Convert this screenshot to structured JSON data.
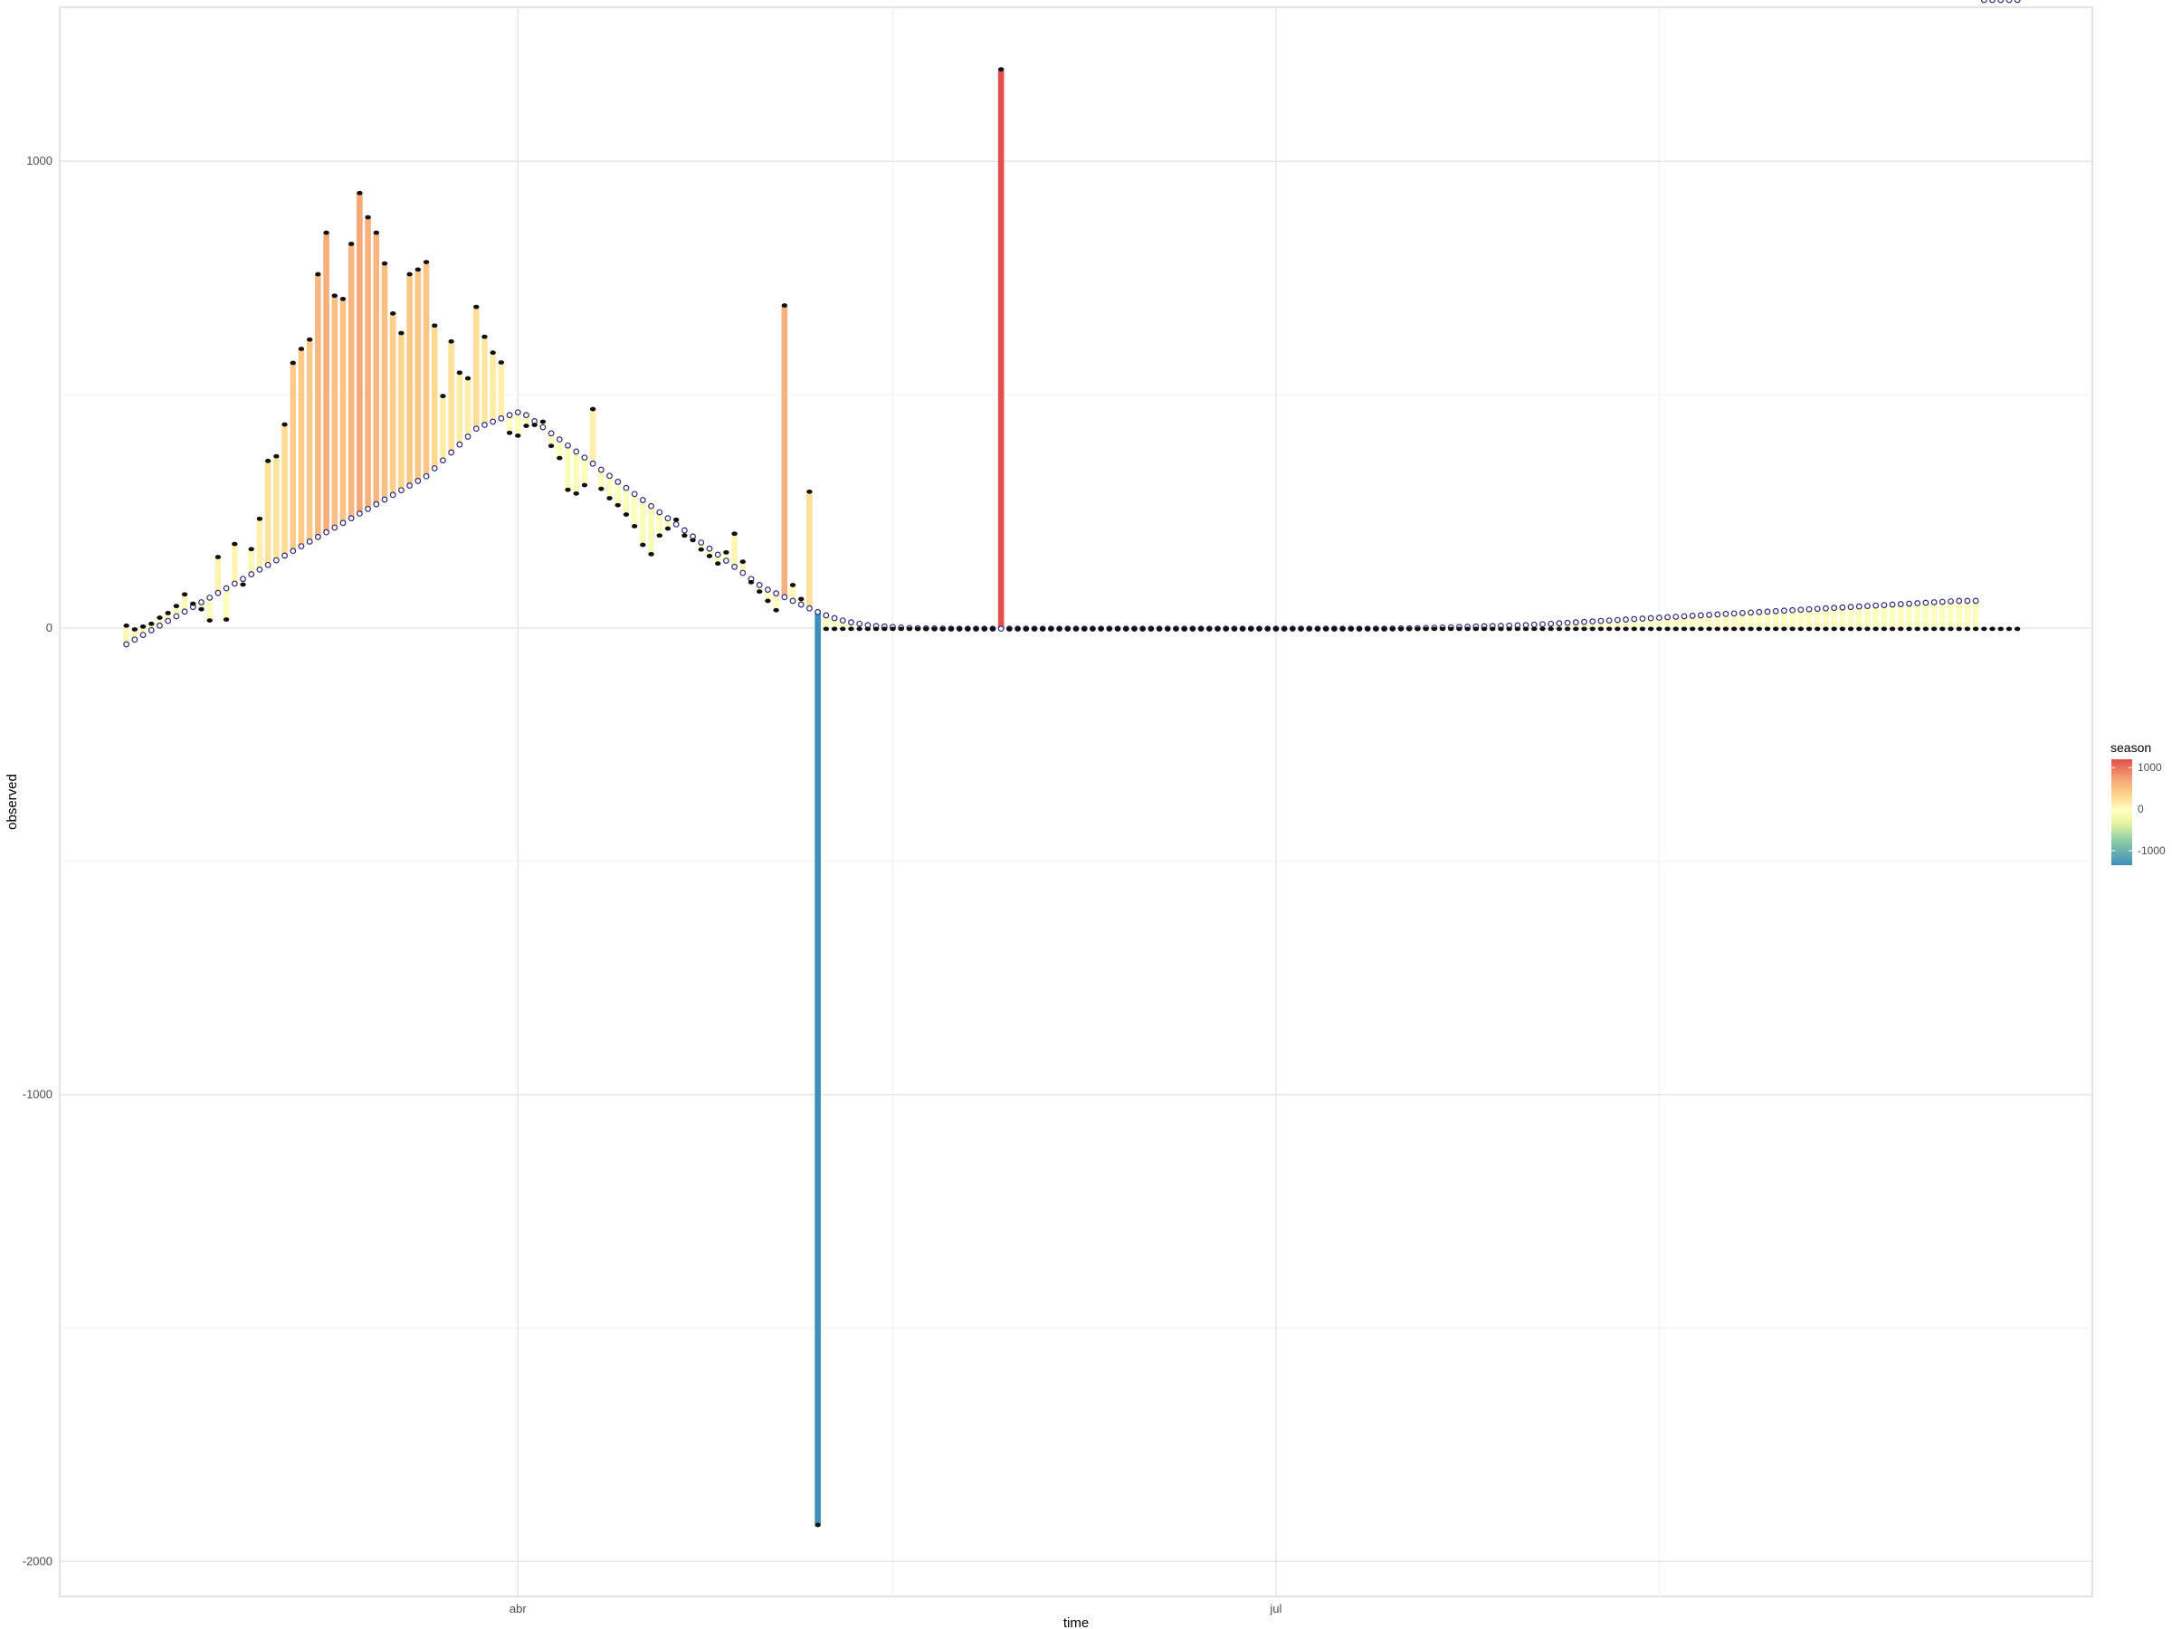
{
  "chart_data": {
    "type": "bar",
    "xlabel": "time",
    "ylabel": "observed",
    "ylim": [
      -2075,
      1330
    ],
    "y_ticks": [
      1000,
      0,
      -1000,
      -2000
    ],
    "y_tick_labels": [
      "1000",
      "0",
      "-1000",
      "-2000"
    ],
    "x_start": "2020-02-06",
    "x_end": "2020-10-07",
    "x_ticks": [
      {
        "date": "2020-04-01",
        "label": "abr"
      },
      {
        "date": "2020-07-01",
        "label": "jul"
      }
    ],
    "x_minor_ticks": [
      "2020-05-16",
      "2020-08-16"
    ],
    "grid": true,
    "legend": {
      "title": "season",
      "position": "right",
      "labels": [
        "1000",
        "0",
        "-1000"
      ],
      "values": [
        1000,
        0,
        -1000
      ],
      "min": -1350,
      "max": 1200
    },
    "colors": {
      "trend_marker": "#2d2a78",
      "observed_marker": "#111111",
      "gradient": [
        "#3f8fbc",
        "#88c9a5",
        "#e8f5a0",
        "#ffffbf",
        "#fed990",
        "#f4a274",
        "#e34e4a"
      ]
    },
    "dates": [
      "2020-02-14",
      "2020-02-15",
      "2020-02-16",
      "2020-02-17",
      "2020-02-18",
      "2020-02-19",
      "2020-02-20",
      "2020-02-21",
      "2020-02-22",
      "2020-02-23",
      "2020-02-24",
      "2020-02-25",
      "2020-02-26",
      "2020-02-27",
      "2020-02-28",
      "2020-02-29",
      "2020-03-01",
      "2020-03-02",
      "2020-03-03",
      "2020-03-04",
      "2020-03-05",
      "2020-03-06",
      "2020-03-07",
      "2020-03-08",
      "2020-03-09",
      "2020-03-10",
      "2020-03-11",
      "2020-03-12",
      "2020-03-13",
      "2020-03-14",
      "2020-03-15",
      "2020-03-16",
      "2020-03-17",
      "2020-03-18",
      "2020-03-19",
      "2020-03-20",
      "2020-03-21",
      "2020-03-22",
      "2020-03-23",
      "2020-03-24",
      "2020-03-25",
      "2020-03-26",
      "2020-03-27",
      "2020-03-28",
      "2020-03-29",
      "2020-03-30",
      "2020-03-31",
      "2020-04-01",
      "2020-04-02",
      "2020-04-03",
      "2020-04-04",
      "2020-04-05",
      "2020-04-06",
      "2020-04-07",
      "2020-04-08",
      "2020-04-09",
      "2020-04-10",
      "2020-04-11",
      "2020-04-12",
      "2020-04-13",
      "2020-04-14",
      "2020-04-15",
      "2020-04-16",
      "2020-04-17",
      "2020-04-18",
      "2020-04-19",
      "2020-04-20",
      "2020-04-21",
      "2020-04-22",
      "2020-04-23",
      "2020-04-24",
      "2020-04-25",
      "2020-04-26",
      "2020-04-27",
      "2020-04-28",
      "2020-04-29",
      "2020-04-30",
      "2020-05-01",
      "2020-05-02",
      "2020-05-03",
      "2020-05-04",
      "2020-05-05",
      "2020-05-06",
      "2020-05-07",
      "2020-05-08",
      "2020-05-09",
      "2020-05-10",
      "2020-05-11",
      "2020-05-12",
      "2020-05-13",
      "2020-05-14",
      "2020-05-15",
      "2020-05-16",
      "2020-05-17",
      "2020-05-18",
      "2020-05-19",
      "2020-05-20",
      "2020-05-21",
      "2020-05-22",
      "2020-05-23",
      "2020-05-24",
      "2020-05-25",
      "2020-05-26",
      "2020-05-27",
      "2020-05-28",
      "2020-05-29",
      "2020-05-30",
      "2020-05-31",
      "2020-06-01",
      "2020-06-02",
      "2020-06-03",
      "2020-06-04",
      "2020-06-05",
      "2020-06-06",
      "2020-06-07",
      "2020-06-08",
      "2020-06-09",
      "2020-06-10",
      "2020-06-11",
      "2020-06-12",
      "2020-06-13",
      "2020-06-14",
      "2020-06-15",
      "2020-06-16",
      "2020-06-17",
      "2020-06-18",
      "2020-06-19",
      "2020-06-20",
      "2020-06-21",
      "2020-06-22",
      "2020-06-23",
      "2020-06-24",
      "2020-06-25",
      "2020-06-26",
      "2020-06-27",
      "2020-06-28",
      "2020-06-29",
      "2020-06-30",
      "2020-07-01",
      "2020-07-02",
      "2020-07-03",
      "2020-07-04",
      "2020-07-05",
      "2020-07-06",
      "2020-07-07",
      "2020-07-08",
      "2020-07-09",
      "2020-07-10",
      "2020-07-11",
      "2020-07-12",
      "2020-07-13",
      "2020-07-14",
      "2020-07-15",
      "2020-07-16",
      "2020-07-17",
      "2020-07-18",
      "2020-07-19",
      "2020-07-20",
      "2020-07-21",
      "2020-07-22",
      "2020-07-23",
      "2020-07-24",
      "2020-07-25",
      "2020-07-26",
      "2020-07-27",
      "2020-07-28",
      "2020-07-29",
      "2020-07-30",
      "2020-07-31",
      "2020-08-01",
      "2020-08-02",
      "2020-08-03",
      "2020-08-04",
      "2020-08-05",
      "2020-08-06",
      "2020-08-07",
      "2020-08-08",
      "2020-08-09",
      "2020-08-10",
      "2020-08-11",
      "2020-08-12",
      "2020-08-13",
      "2020-08-14",
      "2020-08-15",
      "2020-08-16",
      "2020-08-17",
      "2020-08-18",
      "2020-08-19",
      "2020-08-20",
      "2020-08-21",
      "2020-08-22",
      "2020-08-23",
      "2020-08-24",
      "2020-08-25",
      "2020-08-26",
      "2020-08-27",
      "2020-08-28",
      "2020-08-29",
      "2020-08-30",
      "2020-08-31",
      "2020-09-01",
      "2020-09-02",
      "2020-09-03",
      "2020-09-04",
      "2020-09-05",
      "2020-09-06",
      "2020-09-07",
      "2020-09-08",
      "2020-09-09",
      "2020-09-10",
      "2020-09-11",
      "2020-09-12",
      "2020-09-13",
      "2020-09-14",
      "2020-09-15",
      "2020-09-16",
      "2020-09-17",
      "2020-09-18",
      "2020-09-19",
      "2020-09-20",
      "2020-09-21",
      "2020-09-22",
      "2020-09-23",
      "2020-09-24",
      "2020-09-25",
      "2020-09-26",
      "2020-09-27",
      "2020-09-28"
    ],
    "trend": [
      -33,
      -23,
      -13,
      -3,
      7,
      17,
      27,
      37,
      47,
      57,
      67,
      77,
      87,
      97,
      107,
      117,
      127,
      137,
      147,
      157,
      167,
      177,
      187,
      197,
      207,
      217,
      227,
      237,
      247,
      257,
      267,
      277,
      287,
      297,
      307,
      317,
      327,
      344,
      361,
      378,
      395,
      412,
      429,
      437,
      444,
      451,
      458,
      464,
      458,
      445,
      432,
      419,
      406,
      393,
      380,
      367,
      354,
      341,
      328,
      315,
      302,
      289,
      276,
      263,
      250,
      237,
      224,
      211,
      198,
      185,
      172,
      159,
      146,
      133,
      120,
      107,
      94,
      84,
      76,
      68,
      60,
      52,
      44,
      36,
      29,
      23,
      18,
      14,
      11,
      8,
      6,
      5,
      4,
      3,
      2,
      1.5,
      1.2,
      1,
      0.8,
      0.6,
      0.5,
      0.5,
      0.5,
      0.5,
      0.5,
      0.5,
      0.5,
      0.5,
      0.5,
      0.5,
      0.5,
      0.5,
      0.5,
      0.5,
      0.5,
      0.5,
      0.5,
      0.5,
      0.5,
      0.5,
      0.5,
      0.5,
      0.5,
      0.5,
      0.5,
      0.5,
      0.5,
      0.5,
      0.5,
      0.5,
      0.5,
      0.5,
      0.5,
      0.5,
      0.5,
      0.5,
      0.5,
      0.5,
      0.5,
      0.5,
      0.5,
      0.5,
      0.5,
      0.5,
      0.5,
      0.5,
      0.5,
      0.5,
      0.5,
      0.5,
      0.5,
      0.6,
      0.8,
      1,
      1.2,
      1.5,
      2,
      2.5,
      3,
      3.5,
      4,
      4.5,
      5,
      5.5,
      6,
      6.5,
      7,
      7.5,
      8,
      9,
      10,
      11,
      12,
      13,
      14,
      15,
      16,
      17,
      18,
      19,
      20,
      21,
      22,
      23,
      24,
      25,
      26,
      27,
      28,
      29,
      30,
      31,
      32,
      33,
      34,
      35,
      36,
      37,
      38,
      39,
      40,
      41,
      42,
      43,
      44,
      45,
      46,
      47,
      48,
      49,
      50,
      51,
      52,
      53,
      54,
      55,
      56,
      57,
      58,
      59,
      60,
      60,
      60
    ],
    "observed": [
      3,
      -5,
      1,
      7,
      20,
      30,
      45,
      70,
      50,
      42,
      18,
      150,
      20,
      178,
      95,
      167,
      232,
      356,
      366,
      434,
      566,
      596,
      616,
      756,
      845,
      710,
      703,
      821,
      930,
      878,
      845,
      779,
      672,
      630,
      756,
      766,
      782,
      646,
      495,
      612,
      545,
      533,
      686,
      622,
      588,
      567,
      420,
      414,
      435,
      437,
      440,
      392,
      366,
      298,
      290,
      308,
      467,
      300,
      280,
      265,
      245,
      220,
      180,
      160,
      200,
      215,
      230,
      200,
      190,
      170,
      156,
      140,
      160,
      200,
      140,
      100,
      80,
      60,
      40,
      689,
      90,
      60,
      290,
      -1920,
      0,
      0,
      0,
      0,
      0,
      0,
      0,
      0,
      0,
      0,
      0,
      0,
      0,
      0,
      0,
      0,
      0,
      0,
      0,
      0,
      0,
      1195,
      0,
      0,
      0,
      0,
      0,
      0,
      0,
      0,
      0,
      0,
      0,
      0,
      0,
      0,
      0,
      0,
      0,
      0,
      0,
      0,
      0,
      0,
      0,
      0,
      0,
      0,
      0,
      0,
      0,
      0,
      0,
      0,
      0,
      0,
      0,
      0,
      0,
      0,
      0,
      0,
      0,
      0,
      0,
      0,
      0,
      0,
      0,
      0,
      0,
      0,
      0,
      0,
      0,
      0,
      0,
      0,
      0,
      0,
      0,
      0,
      0,
      0,
      0,
      0,
      0,
      0,
      0,
      0,
      0,
      0,
      0,
      0,
      0,
      0,
      0,
      0,
      0,
      0,
      0,
      0,
      0,
      0,
      0,
      0,
      0,
      0,
      0,
      0,
      0,
      0,
      0,
      0,
      0,
      0,
      0,
      0,
      0,
      0,
      0,
      0,
      0,
      0,
      0,
      0,
      0,
      0,
      0,
      0,
      0,
      0,
      0,
      0,
      0,
      0,
      0,
      0,
      0,
      0,
      0,
      0,
      0,
      0,
      0,
      0,
      0,
      0,
      0,
      0,
      0,
      0,
      0,
      0,
      0,
      0,
      0,
      0,
      0,
      0
    ]
  }
}
